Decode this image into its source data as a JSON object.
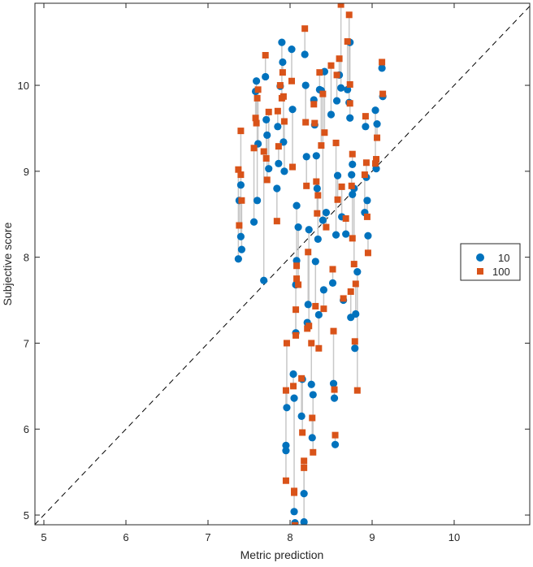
{
  "chart_data": {
    "type": "scatter",
    "title": "",
    "xlabel": "Metric prediction",
    "ylabel": "Subjective score",
    "xlim": [
      4.891,
      10.921
    ],
    "ylim": [
      4.887,
      10.955
    ],
    "xticks": [
      5,
      6,
      7,
      8,
      9,
      10
    ],
    "yticks": [
      5,
      6,
      7,
      8,
      9,
      10
    ],
    "xtick_labels": [
      "5",
      "6",
      "7",
      "8",
      "9",
      "10"
    ],
    "ytick_labels": [
      "5",
      "6",
      "7",
      "8",
      "9",
      "10"
    ],
    "grid": false,
    "legend_placement": "right",
    "reference_line": "y = x (dashed)",
    "series": [
      {
        "name": "10",
        "marker": "circle",
        "color": "#0072BD"
      },
      {
        "name": "100",
        "marker": "square",
        "color": "#D95319"
      }
    ],
    "connector_color": "#c8c8c8",
    "pairs_columns": [
      "x",
      "y_10",
      "y_100"
    ],
    "pairs": [
      [
        7.37,
        7.98,
        9.02
      ],
      [
        7.38,
        8.66,
        8.37
      ],
      [
        7.4,
        8.84,
        9.47
      ],
      [
        7.4,
        8.24,
        8.96
      ],
      [
        7.41,
        8.09,
        8.66
      ],
      [
        7.56,
        8.41,
        9.27
      ],
      [
        7.58,
        9.93,
        9.62
      ],
      [
        7.59,
        10.05,
        9.56
      ],
      [
        7.6,
        8.66,
        9.85
      ],
      [
        7.61,
        9.32,
        9.95
      ],
      [
        7.68,
        7.73,
        9.23
      ],
      [
        7.7,
        10.1,
        10.35
      ],
      [
        7.71,
        9.6,
        9.15
      ],
      [
        7.72,
        9.42,
        8.9
      ],
      [
        7.74,
        9.03,
        9.69
      ],
      [
        7.84,
        8.8,
        8.42
      ],
      [
        7.85,
        9.52,
        9.7
      ],
      [
        7.86,
        9.09,
        9.29
      ],
      [
        7.88,
        9.99,
        10.0
      ],
      [
        7.9,
        10.5,
        9.85
      ],
      [
        7.91,
        10.27,
        10.15
      ],
      [
        7.93,
        9.0,
        9.58
      ],
      [
        7.92,
        9.34,
        9.87
      ],
      [
        7.95,
        5.81,
        6.45
      ],
      [
        7.95,
        5.75,
        5.4
      ],
      [
        7.96,
        6.25,
        7.0
      ],
      [
        8.02,
        10.42,
        10.05
      ],
      [
        8.03,
        9.72,
        9.05
      ],
      [
        8.04,
        6.64,
        6.5
      ],
      [
        8.05,
        6.36,
        5.26
      ],
      [
        8.05,
        5.04,
        5.28
      ],
      [
        8.06,
        4.91,
        4.88
      ],
      [
        8.07,
        7.12,
        7.39
      ],
      [
        8.07,
        7.68,
        7.09
      ],
      [
        8.08,
        7.96,
        7.75
      ],
      [
        8.08,
        8.6,
        7.9
      ],
      [
        8.1,
        8.35,
        7.68
      ],
      [
        8.14,
        6.15,
        6.59
      ],
      [
        8.15,
        6.58,
        5.96
      ],
      [
        8.17,
        5.25,
        5.63
      ],
      [
        8.17,
        4.92,
        5.55
      ],
      [
        8.18,
        10.36,
        10.66
      ],
      [
        8.19,
        10.0,
        9.57
      ],
      [
        8.2,
        9.17,
        8.83
      ],
      [
        8.21,
        7.24,
        7.17
      ],
      [
        8.22,
        7.45,
        8.06
      ],
      [
        8.23,
        8.32,
        7.2
      ],
      [
        8.26,
        6.52,
        7.0
      ],
      [
        8.27,
        5.9,
        6.13
      ],
      [
        8.28,
        6.4,
        5.73
      ],
      [
        8.29,
        9.83,
        9.78
      ],
      [
        8.3,
        9.54,
        9.56
      ],
      [
        8.31,
        7.95,
        7.43
      ],
      [
        8.32,
        9.18,
        8.88
      ],
      [
        8.33,
        8.8,
        8.51
      ],
      [
        8.34,
        8.21,
        8.72
      ],
      [
        8.35,
        7.33,
        6.94
      ],
      [
        8.36,
        9.95,
        10.15
      ],
      [
        8.38,
        9.94,
        9.3
      ],
      [
        8.4,
        8.43,
        9.9
      ],
      [
        8.41,
        7.62,
        7.4
      ],
      [
        8.42,
        10.16,
        9.45
      ],
      [
        8.44,
        8.52,
        8.35
      ],
      [
        8.5,
        9.66,
        10.23
      ],
      [
        8.52,
        7.7,
        7.86
      ],
      [
        8.53,
        6.53,
        7.14
      ],
      [
        8.54,
        6.36,
        6.46
      ],
      [
        8.55,
        5.82,
        5.93
      ],
      [
        8.56,
        8.26,
        9.33
      ],
      [
        8.57,
        9.82,
        10.12
      ],
      [
        8.58,
        8.95,
        8.67
      ],
      [
        8.6,
        10.12,
        10.31
      ],
      [
        8.62,
        9.97,
        10.94
      ],
      [
        8.63,
        8.47,
        8.82
      ],
      [
        8.65,
        7.5,
        7.52
      ],
      [
        8.7,
        9.95,
        10.51
      ],
      [
        8.72,
        9.8,
        10.82
      ],
      [
        8.73,
        10.5,
        10.01
      ],
      [
        8.73,
        9.62,
        9.79
      ],
      [
        8.75,
        8.96,
        8.83
      ],
      [
        8.76,
        8.73,
        8.22
      ],
      [
        8.74,
        7.3,
        7.6
      ],
      [
        8.78,
        8.8,
        7.92
      ],
      [
        8.79,
        6.94,
        7.02
      ],
      [
        8.8,
        7.34,
        7.69
      ],
      [
        8.82,
        7.83,
        6.45
      ],
      [
        8.76,
        9.08,
        9.2
      ],
      [
        8.68,
        8.27,
        8.45
      ],
      [
        8.92,
        9.52,
        9.64
      ],
      [
        8.93,
        8.93,
        9.1
      ],
      [
        8.94,
        8.66,
        8.47
      ],
      [
        8.95,
        8.25,
        8.05
      ],
      [
        8.91,
        8.52,
        8.96
      ],
      [
        9.04,
        9.71,
        9.09
      ],
      [
        9.05,
        9.03,
        9.14
      ],
      [
        9.06,
        9.55,
        9.39
      ],
      [
        9.12,
        10.2,
        10.27
      ],
      [
        9.13,
        9.87,
        9.9
      ]
    ]
  }
}
